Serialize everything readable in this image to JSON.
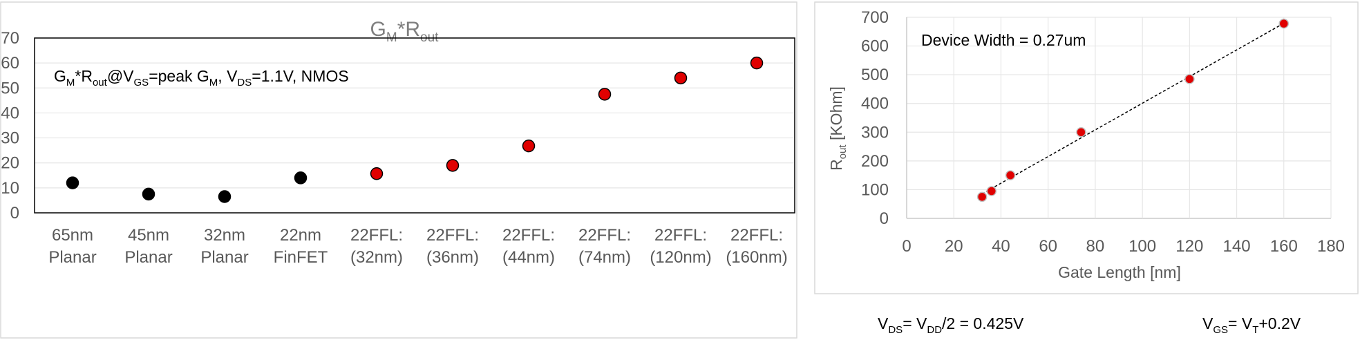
{
  "chart_data": [
    {
      "type": "scatter",
      "title": {
        "main": "G",
        "sub1": "M",
        "mid": "*R",
        "sub2": "out"
      },
      "annotation": {
        "p1": "G",
        "s1": "M",
        "p2": "*R",
        "s2": "out",
        "p3": "@V",
        "s3": "GS",
        "p4": "=peak G",
        "s4": "M",
        "p5": ", V",
        "s5": "DS",
        "p6": "=1.1V, NMOS"
      },
      "categories": [
        "65nm\nPlanar",
        "45nm\nPlanar",
        "32nm\nPlanar",
        "22nm\nFinFET",
        "22FFL:\n(32nm)",
        "22FFL:\n(36nm)",
        "22FFL:\n(44nm)",
        "22FFL:\n(74nm)",
        "22FFL:\n(120nm)",
        "22FFL:\n(160nm)"
      ],
      "values": [
        12,
        7.5,
        6.5,
        14,
        15.7,
        19,
        26.8,
        47.5,
        54,
        60
      ],
      "marker_colors": [
        "#000000",
        "#000000",
        "#000000",
        "#000000",
        "#e00000",
        "#e00000",
        "#e00000",
        "#e00000",
        "#e00000",
        "#e00000"
      ],
      "ylim": [
        0,
        70
      ],
      "yticks": [
        0,
        10,
        20,
        30,
        40,
        50,
        60,
        70
      ],
      "grid": true
    },
    {
      "type": "scatter",
      "annotation": "Device Width = 0.27um",
      "xlabel": "Gate Length [nm]",
      "ylabel": {
        "main": "R",
        "sub": "out",
        "rest": " [KOhm]"
      },
      "x": [
        32,
        36,
        44,
        74,
        120,
        160
      ],
      "y": [
        75,
        95,
        150,
        300,
        485,
        678
      ],
      "xlim": [
        0,
        180
      ],
      "ylim": [
        0,
        700
      ],
      "xticks": [
        0,
        20,
        40,
        60,
        80,
        100,
        120,
        140,
        160,
        180
      ],
      "yticks": [
        0,
        100,
        200,
        300,
        400,
        500,
        600,
        700
      ],
      "trendline": "linear",
      "marker_color": "#e00000",
      "grid": true
    }
  ],
  "footer": {
    "left": {
      "a": "V",
      "a_sub": "DS",
      "b": "= V",
      "b_sub": "DD",
      "c": "/2 = 0.425V"
    },
    "right": {
      "a": "V",
      "a_sub": "GS",
      "b": "= V",
      "b_sub": "T",
      "c": "+0.2V"
    }
  }
}
